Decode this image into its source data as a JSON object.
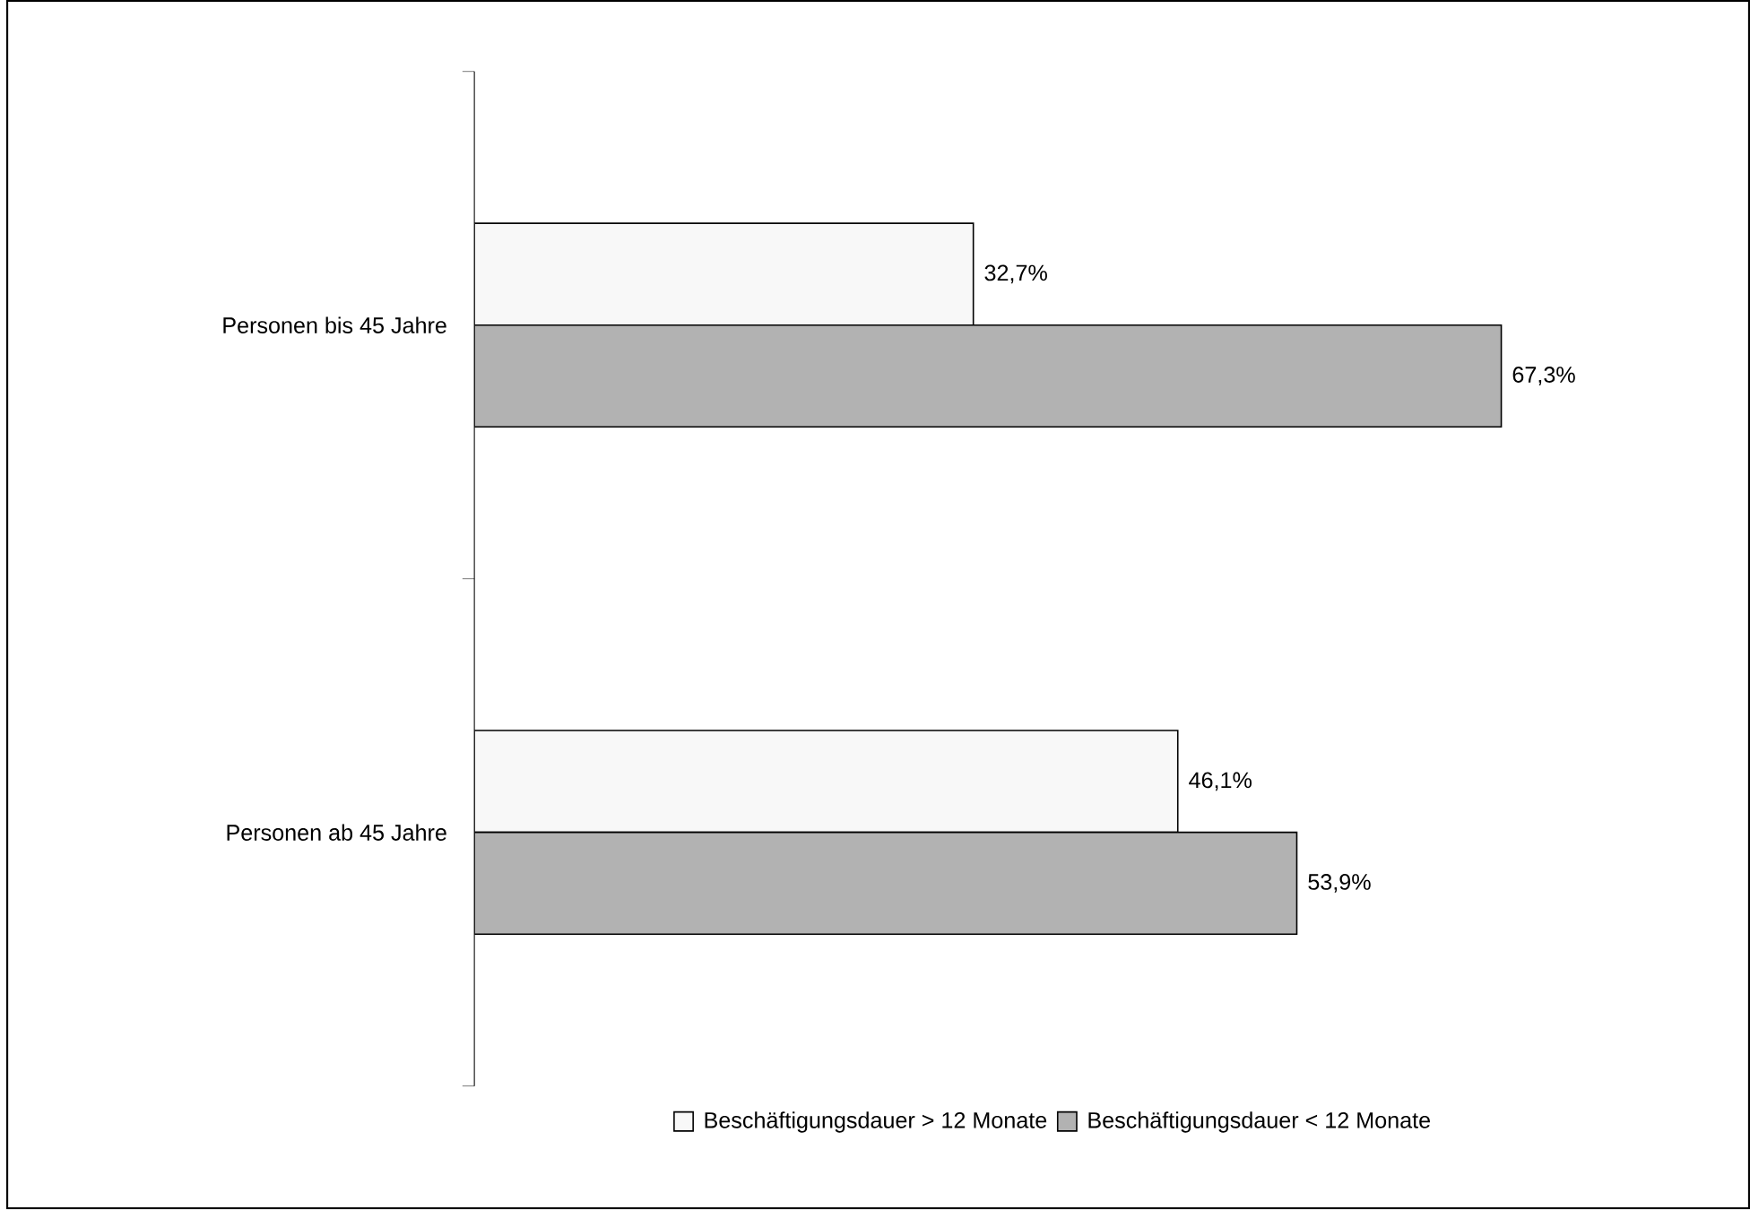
{
  "chart_data": {
    "type": "bar",
    "orientation": "horizontal",
    "categories": [
      "Personen bis 45 Jahre",
      "Personen ab 45 Jahre"
    ],
    "series": [
      {
        "name": "Beschäftigungsdauer > 12 Monate",
        "color": "#f8f8f8",
        "values": [
          32.7,
          46.1
        ],
        "value_labels": [
          "32,7%",
          "46,1%"
        ]
      },
      {
        "name": "Beschäftigungsdauer < 12 Monate",
        "color": "#b2b2b2",
        "values": [
          67.3,
          53.9
        ],
        "value_labels": [
          "67,3%",
          "53,9%"
        ]
      }
    ],
    "legend": "bottom"
  }
}
